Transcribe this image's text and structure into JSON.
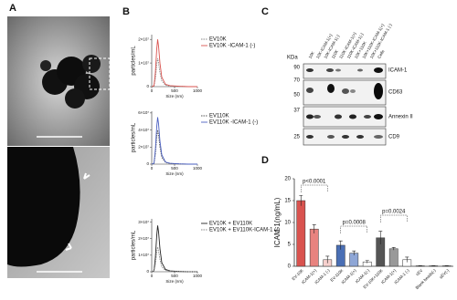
{
  "panels": {
    "a": {
      "label": "A"
    },
    "b": {
      "label": "B"
    },
    "c": {
      "label": "C",
      "kda_label": "KDa",
      "columns": [
        "10K",
        "10K-ICAM-1(+)",
        "10K-ICAM-1(-)",
        "110K",
        "110K-ICAM-1(+)",
        "110K-ICAM-1(-)",
        "10K+110K",
        "10K+110K-ICAM-1(+)",
        "10K+110K-ICAM-1 (-)",
        "Cells"
      ],
      "markers": [
        90,
        70,
        50,
        37,
        25
      ],
      "bands": [
        "ICAM-1",
        "CD63",
        "Annexin II",
        "CD9"
      ]
    },
    "d": {
      "label": "D"
    }
  },
  "chart_data": [
    {
      "type": "line",
      "xlabel": "Size (nm)",
      "ylabel": "particles/mL",
      "x": [
        0,
        50,
        80,
        110,
        130,
        150,
        180,
        220,
        300,
        400,
        600,
        800,
        1000
      ],
      "series": [
        {
          "name": "EV10K",
          "color": "#888888",
          "dash": true,
          "values": [
            0,
            200000,
            3500000,
            9500000,
            12000000,
            10000000,
            6000000,
            2500000,
            600000,
            250000,
            100000,
            0,
            0
          ]
        },
        {
          "name": "EV10K -ICAM-1 (-)",
          "color": "#d9534f",
          "values": [
            0,
            400000,
            6000000,
            16000000,
            20000000,
            17000000,
            10000000,
            4000000,
            1000000,
            400000,
            150000,
            0,
            0
          ]
        }
      ],
      "xlim": [
        0,
        1000
      ],
      "xticks": [
        0,
        500,
        1000
      ],
      "ylim": [
        0,
        22000000
      ],
      "yticks": [
        {
          "value": 0,
          "label": "0"
        },
        {
          "value": 10000000,
          "label": "1×10⁷"
        },
        {
          "value": 20000000,
          "label": "2×10⁷"
        }
      ]
    },
    {
      "type": "line",
      "xlabel": "Size (nm)",
      "ylabel": "particles/mL",
      "x": [
        0,
        50,
        80,
        110,
        130,
        150,
        180,
        220,
        300,
        400,
        600,
        800,
        1000
      ],
      "series": [
        {
          "name": "EV110K",
          "color": "#555555",
          "dash": true,
          "values": [
            0,
            800000,
            12000000,
            32000000,
            40000000,
            34000000,
            20000000,
            8000000,
            2000000,
            800000,
            300000,
            0,
            0
          ]
        },
        {
          "name": "EV110K -ICAM-1 (-)",
          "color": "#4a5fc1",
          "values": [
            0,
            1000000,
            17000000,
            44000000,
            55000000,
            47000000,
            27000000,
            11000000,
            2500000,
            1000000,
            300000,
            0,
            0
          ]
        }
      ],
      "xlim": [
        0,
        1000
      ],
      "xticks": [
        0,
        500,
        1000
      ],
      "ylim": [
        0,
        62000000
      ],
      "yticks": [
        {
          "value": 0,
          "label": "0"
        },
        {
          "value": 20000000,
          "label": "2×10⁷"
        },
        {
          "value": 40000000,
          "label": "4×10⁷"
        },
        {
          "value": 60000000,
          "label": "6×10⁷"
        }
      ]
    },
    {
      "type": "line",
      "xlabel": "Size (nm)",
      "ylabel": "particles/mL",
      "x": [
        0,
        50,
        80,
        110,
        130,
        150,
        180,
        220,
        300,
        400,
        600,
        800,
        1000
      ],
      "series": [
        {
          "name": "EV10K + EV110K",
          "color": "#222222",
          "values": [
            0,
            600000,
            8500000,
            22000000,
            28000000,
            24000000,
            14000000,
            5500000,
            1400000,
            500000,
            200000,
            0,
            0
          ]
        },
        {
          "name": "EV10K + EV110K-ICAM-1 (-)",
          "color": "#888888",
          "dash": true,
          "values": [
            0,
            300000,
            4500000,
            12000000,
            15000000,
            12500000,
            7500000,
            3000000,
            800000,
            300000,
            100000,
            0,
            0
          ]
        }
      ],
      "xlim": [
        0,
        1000
      ],
      "xticks": [
        0,
        500,
        1000
      ],
      "ylim": [
        0,
        32000000
      ],
      "yticks": [
        {
          "value": 0,
          "label": "0"
        },
        {
          "value": 10000000,
          "label": "1×10⁷"
        },
        {
          "value": 20000000,
          "label": "2×10⁷"
        },
        {
          "value": 30000000,
          "label": "3×10⁷"
        }
      ]
    },
    {
      "type": "bar",
      "ylabel": "ICAM-1(ng/mL)",
      "categories": [
        "EV-10K",
        "ICAM-1(+)",
        "ICAM-1 (-)",
        "EV-110K",
        "ICAM-1(+)",
        "ICAM-1(-)",
        "EV-10K+110K",
        "ICAM-1(+)",
        "ICAM-1 (-)",
        "cEV",
        "Blank beads(-)",
        "sEV(-)"
      ],
      "values": [
        15,
        8.5,
        1.5,
        4.8,
        3,
        1,
        6.5,
        4,
        1.5,
        0.1,
        0.1,
        0.1
      ],
      "errors": [
        1.2,
        1,
        0.8,
        1,
        0.5,
        0.3,
        1.5,
        0.3,
        0.6,
        0.05,
        0.05,
        0.05
      ],
      "colors": [
        "#d9534f",
        "#e8837f",
        "#f6d0cd",
        "#4a6fb5",
        "#8ea6d6",
        "#ffffff",
        "#555555",
        "#999999",
        "#ffffff",
        "#cccccc",
        "#cccccc",
        "#cccccc"
      ],
      "ylim": [
        0,
        20
      ],
      "yticks": [
        0,
        5,
        10,
        15,
        20
      ],
      "annotations": [
        "p<0.0001",
        "p=0.0008",
        "p=0.0024"
      ]
    }
  ]
}
